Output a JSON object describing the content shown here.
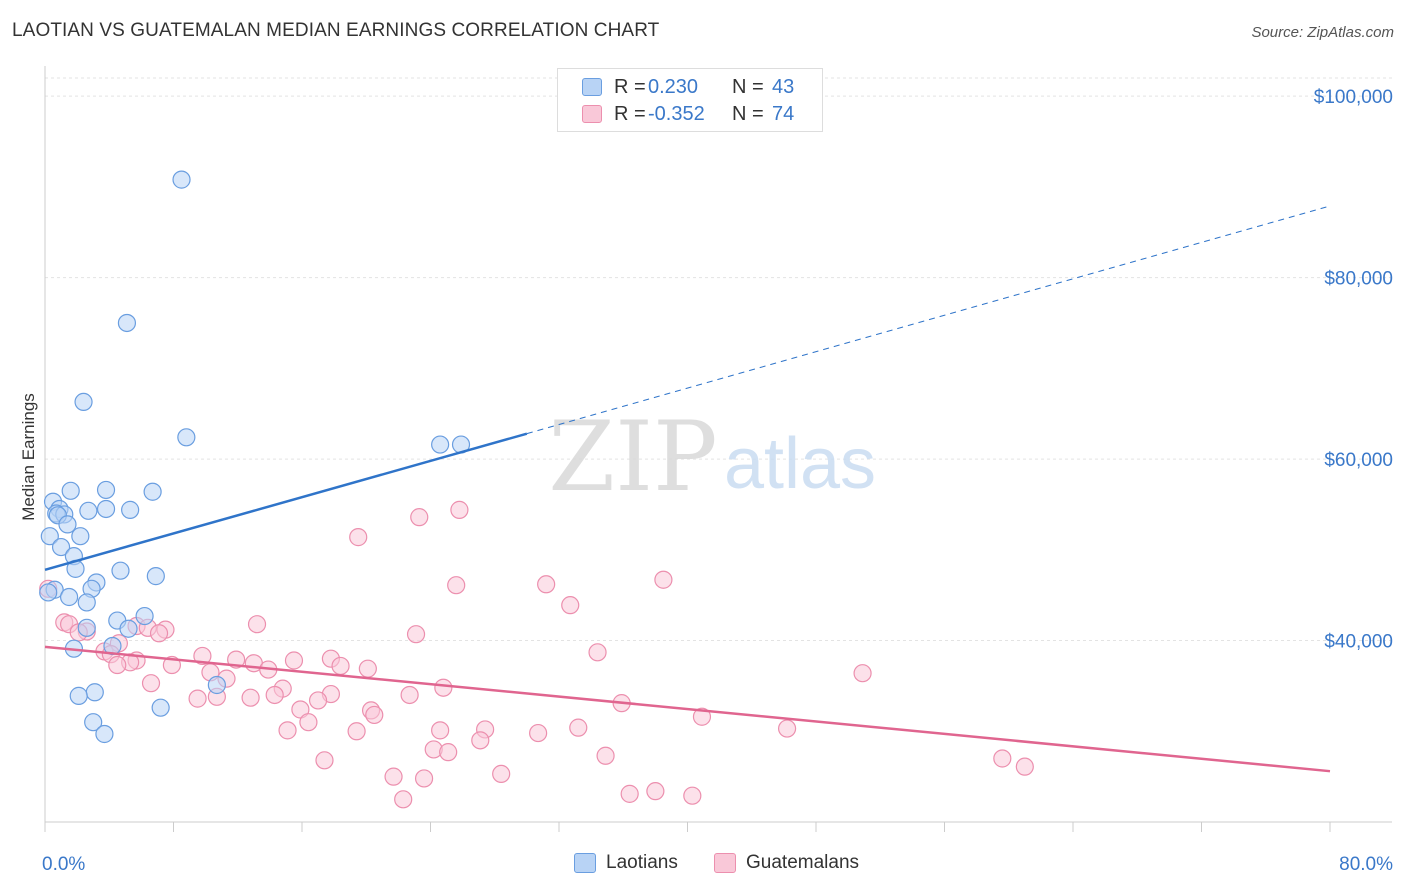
{
  "title": "LAOTIAN VS GUATEMALAN MEDIAN EARNINGS CORRELATION CHART",
  "source": "Source: ZipAtlas.com",
  "watermark": {
    "zip": "ZIP",
    "atlas": "atlas"
  },
  "legend": {
    "rows": [
      {
        "r_label": "R =",
        "r_value": "0.230",
        "n_label": "N =",
        "n_value": "43"
      },
      {
        "r_label": "R =",
        "r_value": "-0.352",
        "n_label": "N =",
        "n_value": "74"
      }
    ]
  },
  "bottom_legend": {
    "laotians": "Laotians",
    "guatemalans": "Guatemalans"
  },
  "colors": {
    "laotian_fill": "#b8d3f5",
    "laotian_stroke": "#6a9ee0",
    "laotian_line": "#2f74c9",
    "guatemalan_fill": "#f9c8d8",
    "guatemalan_stroke": "#ec8fae",
    "guatemalan_line": "#e0658f",
    "axis_label": "#3a78c9",
    "grid": "#e3e3e3"
  },
  "chart_data": {
    "type": "scatter",
    "title": "LAOTIAN VS GUATEMALAN MEDIAN EARNINGS CORRELATION CHART",
    "xlabel": "",
    "ylabel": "Median Earnings",
    "xlim": [
      0,
      80
    ],
    "ylim": [
      20000,
      102000
    ],
    "x_tick_labels": [
      "0.0%",
      "80.0%"
    ],
    "y_ticks": [
      {
        "value": 40000,
        "label": "$40,000"
      },
      {
        "value": 60000,
        "label": "$60,000"
      },
      {
        "value": 80000,
        "label": "$80,000"
      },
      {
        "value": 100000,
        "label": "$100,000"
      }
    ],
    "series": [
      {
        "name": "Laotians",
        "r": 0.23,
        "n": 43,
        "trend": {
          "x0": 0,
          "y0": 47800,
          "x1": 30,
          "y1": 62800,
          "x_dash_end": 80,
          "y_dash_end": 87900
        },
        "points": [
          [
            8.5,
            90800
          ],
          [
            5.1,
            75000
          ],
          [
            2.4,
            66300
          ],
          [
            8.8,
            62400
          ],
          [
            24.6,
            61600
          ],
          [
            25.9,
            61600
          ],
          [
            0.5,
            55300
          ],
          [
            1.6,
            56500
          ],
          [
            3.8,
            56600
          ],
          [
            6.7,
            56400
          ],
          [
            0.9,
            54500
          ],
          [
            2.7,
            54300
          ],
          [
            3.8,
            54500
          ],
          [
            5.3,
            54400
          ],
          [
            0.7,
            54000
          ],
          [
            1.2,
            53900
          ],
          [
            0.8,
            53800
          ],
          [
            1.4,
            52800
          ],
          [
            0.3,
            51500
          ],
          [
            2.2,
            51500
          ],
          [
            1.0,
            50300
          ],
          [
            1.8,
            49300
          ],
          [
            1.9,
            47900
          ],
          [
            4.7,
            47700
          ],
          [
            6.9,
            47100
          ],
          [
            3.2,
            46400
          ],
          [
            2.9,
            45700
          ],
          [
            0.6,
            45600
          ],
          [
            0.2,
            45300
          ],
          [
            1.5,
            44800
          ],
          [
            2.6,
            44200
          ],
          [
            6.2,
            42700
          ],
          [
            4.5,
            42200
          ],
          [
            5.2,
            41300
          ],
          [
            2.6,
            41400
          ],
          [
            4.2,
            39400
          ],
          [
            1.8,
            39100
          ],
          [
            10.7,
            35100
          ],
          [
            3.1,
            34300
          ],
          [
            2.1,
            33900
          ],
          [
            7.2,
            32600
          ],
          [
            3.0,
            31000
          ],
          [
            3.7,
            29700
          ]
        ]
      },
      {
        "name": "Guatemalans",
        "r": -0.352,
        "n": 74,
        "trend": {
          "x0": 0,
          "y0": 39300,
          "x1": 80,
          "y1": 25600
        },
        "points": [
          [
            0.2,
            45700
          ],
          [
            1.2,
            42000
          ],
          [
            1.5,
            41800
          ],
          [
            2.6,
            41000
          ],
          [
            5.7,
            41600
          ],
          [
            6.4,
            41400
          ],
          [
            7.5,
            41200
          ],
          [
            13.2,
            41800
          ],
          [
            23.3,
            53600
          ],
          [
            25.8,
            54400
          ],
          [
            19.5,
            51400
          ],
          [
            25.6,
            46100
          ],
          [
            31.2,
            46200
          ],
          [
            32.7,
            43900
          ],
          [
            38.5,
            46700
          ],
          [
            23.1,
            40700
          ],
          [
            2.1,
            40900
          ],
          [
            4.6,
            39700
          ],
          [
            7.1,
            40800
          ],
          [
            3.7,
            38800
          ],
          [
            4.1,
            38500
          ],
          [
            9.8,
            38300
          ],
          [
            5.7,
            37800
          ],
          [
            5.3,
            37600
          ],
          [
            4.5,
            37300
          ],
          [
            7.9,
            37300
          ],
          [
            11.9,
            37900
          ],
          [
            13.0,
            37500
          ],
          [
            15.5,
            37800
          ],
          [
            17.8,
            38000
          ],
          [
            18.4,
            37200
          ],
          [
            20.1,
            36900
          ],
          [
            13.9,
            36800
          ],
          [
            10.3,
            36500
          ],
          [
            11.3,
            35800
          ],
          [
            6.6,
            35300
          ],
          [
            14.8,
            34700
          ],
          [
            24.8,
            34800
          ],
          [
            17.8,
            34100
          ],
          [
            22.7,
            34000
          ],
          [
            10.7,
            33800
          ],
          [
            9.5,
            33600
          ],
          [
            12.8,
            33700
          ],
          [
            14.3,
            34000
          ],
          [
            17.0,
            33400
          ],
          [
            15.9,
            32400
          ],
          [
            20.3,
            32300
          ],
          [
            20.5,
            31800
          ],
          [
            35.9,
            33100
          ],
          [
            40.9,
            31600
          ],
          [
            34.4,
            38700
          ],
          [
            50.9,
            36400
          ],
          [
            16.4,
            31000
          ],
          [
            15.1,
            30100
          ],
          [
            19.4,
            30000
          ],
          [
            24.6,
            30100
          ],
          [
            27.4,
            30200
          ],
          [
            30.7,
            29800
          ],
          [
            33.2,
            30400
          ],
          [
            46.2,
            30300
          ],
          [
            27.1,
            29000
          ],
          [
            24.2,
            28000
          ],
          [
            25.1,
            27700
          ],
          [
            34.9,
            27300
          ],
          [
            17.4,
            26800
          ],
          [
            21.7,
            25000
          ],
          [
            23.6,
            24800
          ],
          [
            28.4,
            25300
          ],
          [
            22.3,
            22500
          ],
          [
            36.4,
            23100
          ],
          [
            59.6,
            27000
          ],
          [
            61.0,
            26100
          ],
          [
            38.0,
            23400
          ],
          [
            40.3,
            22900
          ]
        ]
      }
    ]
  }
}
